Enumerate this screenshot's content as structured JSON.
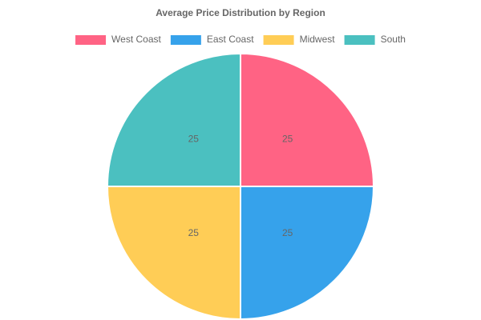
{
  "chart_data": {
    "type": "pie",
    "title": "Average Price Distribution by Region",
    "categories": [
      "West Coast",
      "East Coast",
      "Midwest",
      "South"
    ],
    "values": [
      25,
      25,
      25,
      25
    ],
    "colors": [
      "#ff6384",
      "#36a2eb",
      "#ffcd56",
      "#4bc0c0"
    ],
    "legend": "top"
  }
}
